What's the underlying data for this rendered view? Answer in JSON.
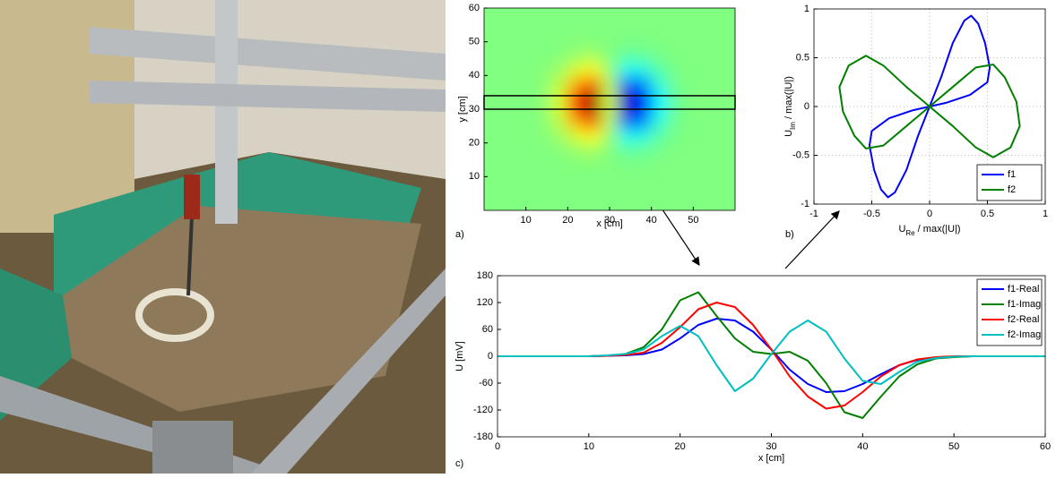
{
  "chart_data": [
    {
      "type": "heatmap",
      "panel_label": "a)",
      "xlabel": "x [cm]",
      "ylabel": "y [cm]",
      "xlim": [
        0,
        60
      ],
      "ylim": [
        0,
        60
      ],
      "xticks": [
        10,
        20,
        30,
        40,
        50
      ],
      "yticks": [
        10,
        20,
        30,
        40,
        50,
        60
      ],
      "colormap": "jet",
      "zlim": [
        -1,
        1
      ],
      "scan_band_y": [
        30,
        34
      ],
      "x": [
        2,
        6,
        10,
        14,
        18,
        22,
        26,
        30,
        34,
        38,
        42,
        46,
        50,
        54,
        58
      ],
      "y": [
        2,
        6,
        10,
        14,
        18,
        22,
        26,
        30,
        34,
        38,
        42,
        46,
        50,
        54,
        58
      ],
      "z": [
        [
          0,
          0,
          0,
          0,
          0,
          0,
          0,
          0,
          0,
          0,
          0,
          0,
          0,
          0,
          0
        ],
        [
          0,
          0,
          0,
          0,
          0,
          0,
          0,
          0,
          0,
          0,
          0,
          0,
          0,
          0,
          0
        ],
        [
          0,
          0,
          0,
          0,
          0,
          0,
          0,
          0,
          0,
          0,
          0,
          0,
          0,
          0,
          0
        ],
        [
          0,
          0,
          0,
          0,
          0,
          0.01,
          0.01,
          0,
          -0.01,
          -0.01,
          0,
          0,
          0,
          0,
          0
        ],
        [
          0,
          0,
          0,
          0,
          0.01,
          0.04,
          0.07,
          0.01,
          -0.06,
          -0.05,
          -0.02,
          0,
          0,
          0,
          0
        ],
        [
          0,
          0,
          0,
          0.01,
          0.05,
          0.17,
          0.25,
          0.04,
          -0.23,
          -0.2,
          -0.07,
          -0.01,
          0,
          0,
          0
        ],
        [
          0,
          0,
          0,
          0.01,
          0.11,
          0.4,
          0.6,
          0.1,
          -0.55,
          -0.49,
          -0.16,
          -0.02,
          0,
          0,
          0
        ],
        [
          0,
          0,
          0,
          0.02,
          0.17,
          0.63,
          0.94,
          0.15,
          -0.86,
          -0.76,
          -0.26,
          -0.04,
          0,
          0,
          0
        ],
        [
          0,
          0,
          0,
          0.02,
          0.17,
          0.63,
          0.94,
          0.15,
          -0.86,
          -0.76,
          -0.26,
          -0.04,
          0,
          0,
          0
        ],
        [
          0,
          0,
          0,
          0.01,
          0.11,
          0.4,
          0.6,
          0.1,
          -0.55,
          -0.49,
          -0.16,
          -0.02,
          0,
          0,
          0
        ],
        [
          0,
          0,
          0,
          0.01,
          0.05,
          0.17,
          0.25,
          0.04,
          -0.23,
          -0.2,
          -0.07,
          -0.01,
          0,
          0,
          0
        ],
        [
          0,
          0,
          0,
          0,
          0.01,
          0.04,
          0.07,
          0.01,
          -0.06,
          -0.05,
          -0.02,
          0,
          0,
          0,
          0
        ],
        [
          0,
          0,
          0,
          0,
          0,
          0.01,
          0.01,
          0,
          -0.01,
          -0.01,
          0,
          0,
          0,
          0,
          0
        ],
        [
          0,
          0,
          0,
          0,
          0,
          0,
          0,
          0,
          0,
          0,
          0,
          0,
          0,
          0,
          0
        ],
        [
          0,
          0,
          0,
          0,
          0,
          0,
          0,
          0,
          0,
          0,
          0,
          0,
          0,
          0,
          0
        ]
      ]
    },
    {
      "type": "line",
      "panel_label": "b)",
      "xlabel": [
        "U",
        "Re",
        " / max(|U|)"
      ],
      "ylabel": [
        "U",
        "Im",
        " / max(|U|)"
      ],
      "xlim": [
        -1,
        1
      ],
      "ylim": [
        -1,
        1
      ],
      "xticks": [
        -1,
        -0.5,
        0,
        0.5,
        1
      ],
      "yticks": [
        -1,
        -0.5,
        0,
        0.5,
        1
      ],
      "grid": true,
      "legend": "lower right",
      "series": [
        {
          "name": "f1",
          "color": "#0000ff",
          "x": [
            0,
            0.1,
            0.2,
            0.3,
            0.36,
            0.42,
            0.48,
            0.52,
            0.5,
            0.35,
            0.15,
            0,
            -0.15,
            -0.35,
            -0.5,
            -0.52,
            -0.48,
            -0.42,
            -0.36,
            -0.3,
            -0.2,
            -0.1,
            0
          ],
          "values": [
            0,
            0.3,
            0.65,
            0.88,
            0.93,
            0.85,
            0.65,
            0.4,
            0.25,
            0.12,
            0.04,
            0,
            -0.04,
            -0.12,
            -0.25,
            -0.4,
            -0.65,
            -0.85,
            -0.93,
            -0.88,
            -0.65,
            -0.3,
            0
          ]
        },
        {
          "name": "f2",
          "color": "#007f00",
          "x": [
            0,
            -0.2,
            -0.4,
            -0.55,
            -0.7,
            -0.78,
            -0.75,
            -0.65,
            -0.55,
            -0.4,
            -0.2,
            0,
            0.2,
            0.4,
            0.55,
            0.65,
            0.75,
            0.78,
            0.7,
            0.55,
            0.4,
            0.2,
            0
          ],
          "values": [
            0,
            0.2,
            0.42,
            0.52,
            0.42,
            0.2,
            -0.05,
            -0.3,
            -0.43,
            -0.4,
            -0.2,
            0,
            0.2,
            0.4,
            0.43,
            0.3,
            0.05,
            -0.2,
            -0.42,
            -0.52,
            -0.42,
            -0.2,
            0
          ]
        }
      ]
    },
    {
      "type": "line",
      "panel_label": "c)",
      "xlabel": "x [cm]",
      "ylabel": "U [mV]",
      "xlim": [
        0,
        60
      ],
      "ylim": [
        -180,
        180
      ],
      "xticks": [
        0,
        10,
        20,
        30,
        40,
        50,
        60
      ],
      "yticks": [
        -180,
        -120,
        -60,
        0,
        60,
        120,
        180
      ],
      "grid": false,
      "legend": "upper right",
      "x": [
        0,
        2,
        4,
        6,
        8,
        10,
        12,
        14,
        16,
        18,
        20,
        22,
        24,
        26,
        28,
        30,
        32,
        34,
        36,
        38,
        40,
        42,
        44,
        46,
        48,
        50,
        52,
        54,
        56,
        58,
        60
      ],
      "series": [
        {
          "name": "f1-Real",
          "color": "#0000ff",
          "values": [
            0,
            0,
            0,
            0,
            0,
            0,
            1,
            2,
            5,
            15,
            40,
            70,
            84,
            80,
            55,
            15,
            -30,
            -62,
            -80,
            -78,
            -62,
            -40,
            -20,
            -8,
            -3,
            -1,
            0,
            0,
            0,
            0,
            0
          ]
        },
        {
          "name": "f1-Imag",
          "color": "#007f00",
          "values": [
            0,
            0,
            0,
            0,
            0,
            0,
            1,
            5,
            20,
            60,
            125,
            143,
            90,
            40,
            10,
            5,
            10,
            -10,
            -60,
            -125,
            -138,
            -90,
            -45,
            -18,
            -5,
            -2,
            0,
            0,
            0,
            0,
            0
          ]
        },
        {
          "name": "f2-Real",
          "color": "#ff0000",
          "values": [
            0,
            0,
            0,
            0,
            0,
            0,
            1,
            3,
            8,
            30,
            65,
            105,
            120,
            110,
            70,
            15,
            -45,
            -90,
            -117,
            -110,
            -80,
            -45,
            -20,
            -7,
            -2,
            0,
            0,
            0,
            0,
            0,
            0
          ]
        },
        {
          "name": "f2-Imag",
          "color": "#00bfbf",
          "values": [
            0,
            0,
            0,
            0,
            0,
            0,
            2,
            5,
            15,
            45,
            68,
            45,
            -20,
            -78,
            -50,
            5,
            55,
            80,
            55,
            -5,
            -55,
            -62,
            -35,
            -12,
            -4,
            -1,
            0,
            0,
            0,
            0,
            0
          ]
        }
      ]
    }
  ]
}
